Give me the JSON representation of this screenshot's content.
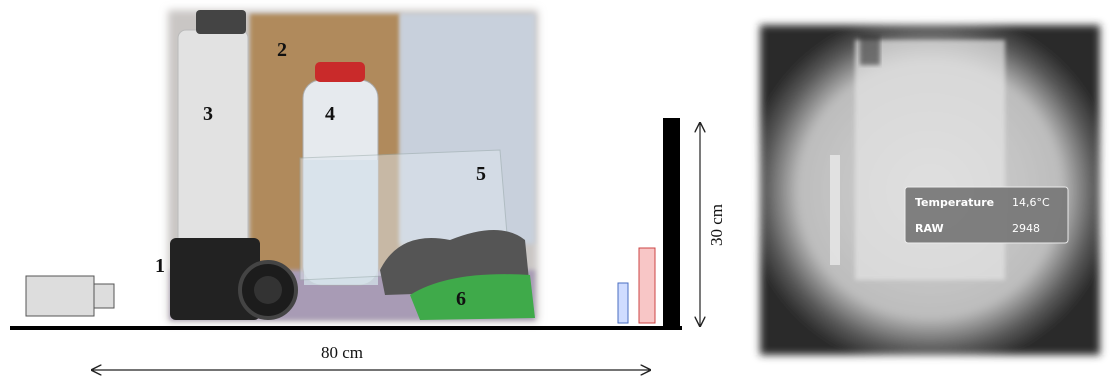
{
  "scene": {
    "labels": [
      "1",
      "2",
      "3",
      "4",
      "5",
      "6"
    ],
    "width_label": "80 cm",
    "height_label": "30 cm"
  },
  "thermal": {
    "overlay": {
      "rows": [
        [
          "Temperature",
          "14,6°C"
        ],
        [
          "RAW",
          "2948"
        ]
      ]
    }
  }
}
